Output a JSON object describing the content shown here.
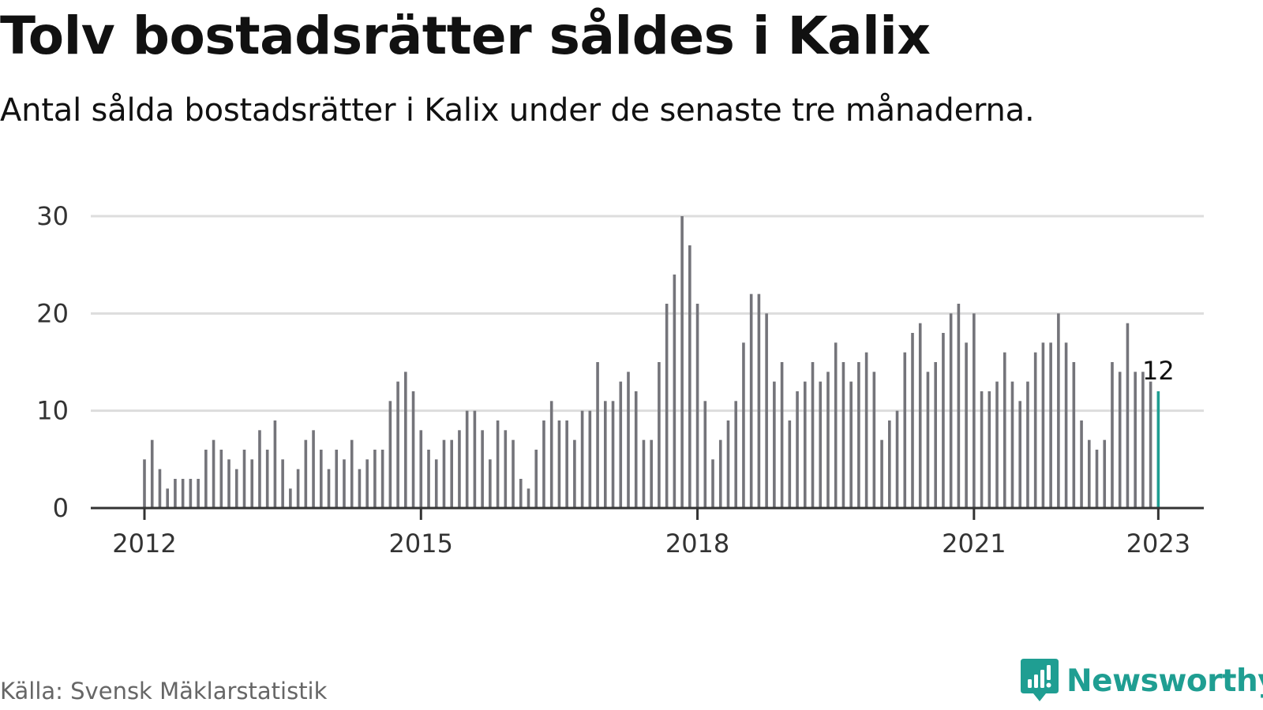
{
  "header": {
    "title": "Tolv bostadsrätter såldes i Kalix",
    "subtitle": "Antal sålda bostadsrätter i Kalix under de senaste tre månaderna."
  },
  "chart_data": {
    "type": "bar",
    "title": "Tolv bostadsrätter såldes i Kalix",
    "subtitle": "Antal sålda bostadsrätter i Kalix under de senaste tre månaderna.",
    "xlabel": "",
    "ylabel": "",
    "start_month": "2012-01",
    "frequency": "monthly",
    "values": [
      5,
      7,
      4,
      2,
      3,
      3,
      3,
      3,
      6,
      7,
      6,
      5,
      4,
      6,
      5,
      8,
      6,
      9,
      5,
      2,
      4,
      7,
      8,
      6,
      4,
      6,
      5,
      7,
      4,
      5,
      6,
      6,
      11,
      13,
      14,
      12,
      8,
      6,
      5,
      7,
      7,
      8,
      10,
      10,
      8,
      5,
      9,
      8,
      7,
      3,
      2,
      6,
      9,
      11,
      9,
      9,
      7,
      10,
      10,
      15,
      11,
      11,
      13,
      14,
      12,
      7,
      7,
      15,
      21,
      24,
      30,
      27,
      21,
      11,
      5,
      7,
      9,
      11,
      17,
      22,
      22,
      20,
      13,
      15,
      9,
      12,
      13,
      15,
      13,
      14,
      17,
      15,
      13,
      15,
      16,
      14,
      7,
      9,
      10,
      16,
      18,
      19,
      14,
      15,
      18,
      20,
      21,
      17,
      20,
      12,
      12,
      13,
      16,
      13,
      11,
      13,
      16,
      17,
      17,
      20,
      17,
      15,
      9,
      7,
      6,
      7,
      15,
      14,
      19,
      14,
      14,
      13,
      12
    ],
    "x_ticks": [
      "2012",
      "2015",
      "2018",
      "2021",
      "2023"
    ],
    "y_ticks": [
      "0",
      "10",
      "20",
      "30"
    ],
    "ylim": [
      0,
      30
    ],
    "grid": true,
    "highlight": {
      "label": "12",
      "value": 12,
      "color": "#1f9e92"
    },
    "bar_color": "#74747a",
    "axis_color": "#333333",
    "grid_color": "#dddddd"
  },
  "footer": {
    "source": "Källa: Svensk Mäklarstatistik",
    "brand": "Newsworthy",
    "brand_color": "#1f9e92"
  }
}
